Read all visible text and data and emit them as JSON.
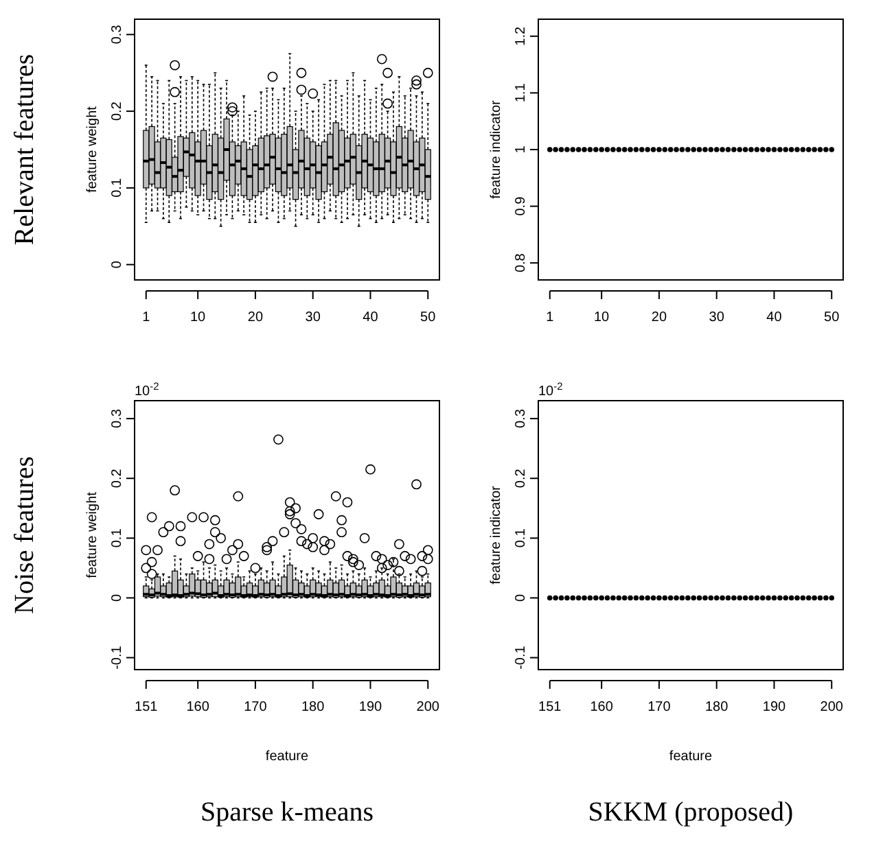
{
  "chart_data": [
    {
      "type": "box",
      "ylabel": "feature weight",
      "categories": [
        "1",
        null,
        null,
        null,
        null,
        null,
        null,
        null,
        null,
        "10",
        null,
        null,
        null,
        null,
        null,
        null,
        null,
        null,
        null,
        "20",
        null,
        null,
        null,
        null,
        null,
        null,
        null,
        null,
        null,
        "30",
        null,
        null,
        null,
        null,
        null,
        null,
        null,
        null,
        null,
        "40",
        null,
        null,
        null,
        null,
        null,
        null,
        null,
        null,
        null,
        "50"
      ],
      "ylim": [
        -0.02,
        0.32
      ],
      "yticks": [
        0,
        0.1,
        0.2,
        0.3
      ],
      "annotations": [
        "Relevant features"
      ],
      "series": [
        {
          "color": "#bebebe",
          "boxes": [
            {
              "low": 0.055,
              "q1": 0.1,
              "median": 0.135,
              "q3": 0.175,
              "high": 0.26
            },
            {
              "low": 0.07,
              "q1": 0.105,
              "median": 0.137,
              "q3": 0.18,
              "high": 0.245
            },
            {
              "low": 0.07,
              "q1": 0.1,
              "median": 0.12,
              "q3": 0.16,
              "high": 0.24
            },
            {
              "low": 0.06,
              "q1": 0.1,
              "median": 0.133,
              "q3": 0.165,
              "high": 0.21
            },
            {
              "low": 0.055,
              "q1": 0.09,
              "median": 0.127,
              "q3": 0.163,
              "high": 0.24
            },
            {
              "low": 0.07,
              "q1": 0.095,
              "median": 0.115,
              "q3": 0.14,
              "high": 0.21,
              "outliers": [
                0.26,
                0.225
              ]
            },
            {
              "low": 0.06,
              "q1": 0.095,
              "median": 0.123,
              "q3": 0.167,
              "high": 0.245
            },
            {
              "low": 0.075,
              "q1": 0.115,
              "median": 0.147,
              "q3": 0.165,
              "high": 0.24
            },
            {
              "low": 0.07,
              "q1": 0.1,
              "median": 0.143,
              "q3": 0.172,
              "high": 0.245
            },
            {
              "low": 0.065,
              "q1": 0.09,
              "median": 0.135,
              "q3": 0.16,
              "high": 0.24
            },
            {
              "low": 0.07,
              "q1": 0.105,
              "median": 0.135,
              "q3": 0.175,
              "high": 0.235
            },
            {
              "low": 0.06,
              "q1": 0.085,
              "median": 0.12,
              "q3": 0.155,
              "high": 0.235
            },
            {
              "low": 0.06,
              "q1": 0.095,
              "median": 0.13,
              "q3": 0.17,
              "high": 0.25
            },
            {
              "low": 0.05,
              "q1": 0.085,
              "median": 0.12,
              "q3": 0.165,
              "high": 0.23
            },
            {
              "low": 0.065,
              "q1": 0.11,
              "median": 0.15,
              "q3": 0.19,
              "high": 0.24
            },
            {
              "low": 0.06,
              "q1": 0.09,
              "median": 0.13,
              "q3": 0.16,
              "high": 0.195,
              "outliers": [
                0.205,
                0.2
              ]
            },
            {
              "low": 0.07,
              "q1": 0.105,
              "median": 0.135,
              "q3": 0.155,
              "high": 0.2
            },
            {
              "low": 0.065,
              "q1": 0.09,
              "median": 0.125,
              "q3": 0.16,
              "high": 0.22
            },
            {
              "low": 0.055,
              "q1": 0.085,
              "median": 0.115,
              "q3": 0.15,
              "high": 0.195
            },
            {
              "low": 0.055,
              "q1": 0.09,
              "median": 0.13,
              "q3": 0.155,
              "high": 0.2
            },
            {
              "low": 0.065,
              "q1": 0.095,
              "median": 0.125,
              "q3": 0.165,
              "high": 0.225
            },
            {
              "low": 0.06,
              "q1": 0.1,
              "median": 0.13,
              "q3": 0.168,
              "high": 0.23
            },
            {
              "low": 0.07,
              "q1": 0.105,
              "median": 0.14,
              "q3": 0.17,
              "high": 0.23,
              "outliers": [
                0.245
              ]
            },
            {
              "low": 0.055,
              "q1": 0.095,
              "median": 0.125,
              "q3": 0.165,
              "high": 0.215
            },
            {
              "low": 0.06,
              "q1": 0.09,
              "median": 0.12,
              "q3": 0.17,
              "high": 0.23
            },
            {
              "low": 0.07,
              "q1": 0.1,
              "median": 0.13,
              "q3": 0.18,
              "high": 0.275
            },
            {
              "low": 0.05,
              "q1": 0.085,
              "median": 0.12,
              "q3": 0.15,
              "high": 0.2
            },
            {
              "low": 0.065,
              "q1": 0.1,
              "median": 0.135,
              "q3": 0.175,
              "high": 0.22,
              "outliers": [
                0.25,
                0.228
              ]
            },
            {
              "low": 0.06,
              "q1": 0.09,
              "median": 0.125,
              "q3": 0.165,
              "high": 0.21
            },
            {
              "low": 0.065,
              "q1": 0.1,
              "median": 0.13,
              "q3": 0.16,
              "high": 0.2,
              "outliers": [
                0.223
              ]
            },
            {
              "low": 0.055,
              "q1": 0.085,
              "median": 0.12,
              "q3": 0.155,
              "high": 0.215
            },
            {
              "low": 0.06,
              "q1": 0.095,
              "median": 0.13,
              "q3": 0.16,
              "high": 0.235
            },
            {
              "low": 0.07,
              "q1": 0.105,
              "median": 0.14,
              "q3": 0.17,
              "high": 0.24
            },
            {
              "low": 0.06,
              "q1": 0.09,
              "median": 0.125,
              "q3": 0.185,
              "high": 0.24
            },
            {
              "low": 0.055,
              "q1": 0.095,
              "median": 0.13,
              "q3": 0.175,
              "high": 0.22
            },
            {
              "low": 0.06,
              "q1": 0.1,
              "median": 0.135,
              "q3": 0.165,
              "high": 0.24
            },
            {
              "low": 0.065,
              "q1": 0.105,
              "median": 0.14,
              "q3": 0.17,
              "high": 0.25
            },
            {
              "low": 0.05,
              "q1": 0.085,
              "median": 0.12,
              "q3": 0.155,
              "high": 0.22
            },
            {
              "low": 0.065,
              "q1": 0.1,
              "median": 0.135,
              "q3": 0.17,
              "high": 0.24
            },
            {
              "low": 0.06,
              "q1": 0.095,
              "median": 0.13,
              "q3": 0.165,
              "high": 0.215
            },
            {
              "low": 0.055,
              "q1": 0.09,
              "median": 0.125,
              "q3": 0.16,
              "high": 0.23
            },
            {
              "low": 0.06,
              "q1": 0.095,
              "median": 0.125,
              "q3": 0.17,
              "high": 0.235,
              "outliers": [
                0.268
              ]
            },
            {
              "low": 0.065,
              "q1": 0.1,
              "median": 0.135,
              "q3": 0.165,
              "high": 0.2,
              "outliers": [
                0.25,
                0.21
              ]
            },
            {
              "low": 0.055,
              "q1": 0.09,
              "median": 0.12,
              "q3": 0.16,
              "high": 0.225
            },
            {
              "low": 0.06,
              "q1": 0.1,
              "median": 0.14,
              "q3": 0.18,
              "high": 0.245
            },
            {
              "low": 0.065,
              "q1": 0.095,
              "median": 0.13,
              "q3": 0.165,
              "high": 0.22
            },
            {
              "low": 0.06,
              "q1": 0.1,
              "median": 0.135,
              "q3": 0.175,
              "high": 0.23
            },
            {
              "low": 0.055,
              "q1": 0.09,
              "median": 0.125,
              "q3": 0.16,
              "high": 0.22,
              "outliers": [
                0.24,
                0.235
              ]
            },
            {
              "low": 0.06,
              "q1": 0.095,
              "median": 0.13,
              "q3": 0.165,
              "high": 0.225
            },
            {
              "low": 0.055,
              "q1": 0.085,
              "median": 0.115,
              "q3": 0.15,
              "high": 0.21,
              "outliers": [
                0.25
              ]
            }
          ]
        }
      ]
    },
    {
      "type": "scatter",
      "ylabel": "feature indicator",
      "marker": "circle",
      "categories": [
        "1",
        null,
        null,
        null,
        null,
        null,
        null,
        null,
        null,
        "10",
        null,
        null,
        null,
        null,
        null,
        null,
        null,
        null,
        null,
        "20",
        null,
        null,
        null,
        null,
        null,
        null,
        null,
        null,
        null,
        "30",
        null,
        null,
        null,
        null,
        null,
        null,
        null,
        null,
        null,
        "40",
        null,
        null,
        null,
        null,
        null,
        null,
        null,
        null,
        null,
        "50"
      ],
      "ylim": [
        0.77,
        1.23
      ],
      "yticks": [
        0.8,
        0.9,
        1.0,
        1.1,
        1.2
      ],
      "series": [
        {
          "color": "#000000",
          "values": [
            1,
            1,
            1,
            1,
            1,
            1,
            1,
            1,
            1,
            1,
            1,
            1,
            1,
            1,
            1,
            1,
            1,
            1,
            1,
            1,
            1,
            1,
            1,
            1,
            1,
            1,
            1,
            1,
            1,
            1,
            1,
            1,
            1,
            1,
            1,
            1,
            1,
            1,
            1,
            1,
            1,
            1,
            1,
            1,
            1,
            1,
            1,
            1,
            1,
            1
          ]
        }
      ]
    },
    {
      "type": "box",
      "ylabel": "feature weight",
      "xlabel": "feature",
      "categories": [
        "151",
        null,
        null,
        null,
        null,
        null,
        null,
        null,
        null,
        "160",
        null,
        null,
        null,
        null,
        null,
        null,
        null,
        null,
        null,
        "170",
        null,
        null,
        null,
        null,
        null,
        null,
        null,
        null,
        null,
        "180",
        null,
        null,
        null,
        null,
        null,
        null,
        null,
        null,
        null,
        "190",
        null,
        null,
        null,
        null,
        null,
        null,
        null,
        null,
        null,
        "200"
      ],
      "ylim": [
        -0.12,
        0.33
      ],
      "yticks": [
        -0.1,
        0,
        0.1,
        0.2,
        0.3
      ],
      "annotations": [
        "10$^{-2}$",
        "Noise features",
        "Sparse k-means"
      ],
      "series": [
        {
          "color": "#bebebe",
          "boxes": [
            {
              "low": 0,
              "q1": 0.002,
              "median": 0.006,
              "q3": 0.02,
              "high": 0.035,
              "outliers": [
                0.08,
                0.05
              ]
            },
            {
              "low": 0,
              "q1": 0.001,
              "median": 0.005,
              "q3": 0.015,
              "high": 0.03,
              "outliers": [
                0.135,
                0.06,
                0.04
              ]
            },
            {
              "low": 0,
              "q1": 0.003,
              "median": 0.008,
              "q3": 0.035,
              "high": 0.04,
              "outliers": [
                0.08
              ]
            },
            {
              "low": 0,
              "q1": 0.002,
              "median": 0.006,
              "q3": 0.02,
              "high": 0.04,
              "outliers": [
                0.11
              ]
            },
            {
              "low": 0,
              "q1": 0.001,
              "median": 0.004,
              "q3": 0.025,
              "high": 0.035,
              "outliers": [
                0.12
              ]
            },
            {
              "low": 0,
              "q1": 0.002,
              "median": 0.005,
              "q3": 0.045,
              "high": 0.07,
              "outliers": [
                0.18
              ]
            },
            {
              "low": 0,
              "q1": 0.001,
              "median": 0.004,
              "q3": 0.03,
              "high": 0.065,
              "outliers": [
                0.12,
                0.095
              ]
            },
            {
              "low": 0,
              "q1": 0.002,
              "median": 0.006,
              "q3": 0.02,
              "high": 0.04
            },
            {
              "low": 0,
              "q1": 0.003,
              "median": 0.008,
              "q3": 0.04,
              "high": 0.05,
              "outliers": [
                0.135
              ]
            },
            {
              "low": 0,
              "q1": 0.002,
              "median": 0.007,
              "q3": 0.03,
              "high": 0.045,
              "outliers": [
                0.07
              ]
            },
            {
              "low": 0,
              "q1": 0.001,
              "median": 0.005,
              "q3": 0.03,
              "high": 0.06,
              "outliers": [
                0.135
              ]
            },
            {
              "low": 0,
              "q1": 0.002,
              "median": 0.006,
              "q3": 0.025,
              "high": 0.05,
              "outliers": [
                0.09,
                0.065
              ]
            },
            {
              "low": 0,
              "q1": 0.002,
              "median": 0.008,
              "q3": 0.03,
              "high": 0.055,
              "outliers": [
                0.13,
                0.11
              ]
            },
            {
              "low": 0,
              "q1": 0.001,
              "median": 0.004,
              "q3": 0.02,
              "high": 0.045,
              "outliers": [
                0.1
              ]
            },
            {
              "low": 0,
              "q1": 0.002,
              "median": 0.006,
              "q3": 0.03,
              "high": 0.05,
              "outliers": [
                0.065
              ]
            },
            {
              "low": 0,
              "q1": 0.001,
              "median": 0.005,
              "q3": 0.025,
              "high": 0.04,
              "outliers": [
                0.08
              ]
            },
            {
              "low": 0,
              "q1": 0.002,
              "median": 0.006,
              "q3": 0.035,
              "high": 0.06,
              "outliers": [
                0.17,
                0.09
              ]
            },
            {
              "low": 0,
              "q1": 0.001,
              "median": 0.004,
              "q3": 0.02,
              "high": 0.035,
              "outliers": [
                0.07
              ]
            },
            {
              "low": 0,
              "q1": 0.002,
              "median": 0.005,
              "q3": 0.025,
              "high": 0.045
            },
            {
              "low": 0,
              "q1": 0.001,
              "median": 0.004,
              "q3": 0.02,
              "high": 0.04,
              "outliers": [
                0.05
              ]
            },
            {
              "low": 0,
              "q1": 0.002,
              "median": 0.006,
              "q3": 0.03,
              "high": 0.05
            },
            {
              "low": 0,
              "q1": 0.001,
              "median": 0.005,
              "q3": 0.025,
              "high": 0.045,
              "outliers": [
                0.085,
                0.08
              ]
            },
            {
              "low": 0,
              "q1": 0.002,
              "median": 0.006,
              "q3": 0.03,
              "high": 0.06,
              "outliers": [
                0.095
              ]
            },
            {
              "low": 0,
              "q1": 0.001,
              "median": 0.004,
              "q3": 0.02,
              "high": 0.04,
              "outliers": [
                0.265
              ]
            },
            {
              "low": 0,
              "q1": 0.002,
              "median": 0.006,
              "q3": 0.035,
              "high": 0.07,
              "outliers": [
                0.11
              ]
            },
            {
              "low": 0,
              "q1": 0.002,
              "median": 0.007,
              "q3": 0.055,
              "high": 0.08,
              "outliers": [
                0.16,
                0.145,
                0.14
              ]
            },
            {
              "low": 0,
              "q1": 0.001,
              "median": 0.005,
              "q3": 0.03,
              "high": 0.05,
              "outliers": [
                0.15,
                0.125
              ]
            },
            {
              "low": 0,
              "q1": 0.002,
              "median": 0.006,
              "q3": 0.025,
              "high": 0.045,
              "outliers": [
                0.115,
                0.095
              ]
            },
            {
              "low": 0,
              "q1": 0.001,
              "median": 0.004,
              "q3": 0.02,
              "high": 0.04,
              "outliers": [
                0.09
              ]
            },
            {
              "low": 0,
              "q1": 0.002,
              "median": 0.006,
              "q3": 0.03,
              "high": 0.05,
              "outliers": [
                0.1,
                0.085
              ]
            },
            {
              "low": 0,
              "q1": 0.002,
              "median": 0.005,
              "q3": 0.025,
              "high": 0.045,
              "outliers": [
                0.14
              ]
            },
            {
              "low": 0,
              "q1": 0.001,
              "median": 0.004,
              "q3": 0.02,
              "high": 0.04,
              "outliers": [
                0.095,
                0.08
              ]
            },
            {
              "low": 0,
              "q1": 0.002,
              "median": 0.006,
              "q3": 0.03,
              "high": 0.06,
              "outliers": [
                0.09
              ]
            },
            {
              "low": 0,
              "q1": 0.001,
              "median": 0.005,
              "q3": 0.025,
              "high": 0.05,
              "outliers": [
                0.17
              ]
            },
            {
              "low": 0,
              "q1": 0.002,
              "median": 0.006,
              "q3": 0.03,
              "high": 0.055,
              "outliers": [
                0.13,
                0.11
              ]
            },
            {
              "low": 0,
              "q1": 0.001,
              "median": 0.004,
              "q3": 0.02,
              "high": 0.04,
              "outliers": [
                0.16,
                0.07
              ]
            },
            {
              "low": 0,
              "q1": 0.002,
              "median": 0.006,
              "q3": 0.025,
              "high": 0.045,
              "outliers": [
                0.065,
                0.06
              ]
            },
            {
              "low": 0,
              "q1": 0.001,
              "median": 0.005,
              "q3": 0.02,
              "high": 0.04,
              "outliers": [
                0.055
              ]
            },
            {
              "low": 0,
              "q1": 0.002,
              "median": 0.006,
              "q3": 0.03,
              "high": 0.05,
              "outliers": [
                0.1
              ]
            },
            {
              "low": 0,
              "q1": 0.001,
              "median": 0.004,
              "q3": 0.02,
              "high": 0.035,
              "outliers": [
                0.215
              ]
            },
            {
              "low": 0,
              "q1": 0.002,
              "median": 0.006,
              "q3": 0.025,
              "high": 0.045,
              "outliers": [
                0.07
              ]
            },
            {
              "low": 0,
              "q1": 0.002,
              "median": 0.005,
              "q3": 0.03,
              "high": 0.05,
              "outliers": [
                0.065,
                0.05
              ]
            },
            {
              "low": 0,
              "q1": 0.001,
              "median": 0.004,
              "q3": 0.02,
              "high": 0.04,
              "outliers": [
                0.055
              ]
            },
            {
              "low": 0,
              "q1": 0.002,
              "median": 0.006,
              "q3": 0.035,
              "high": 0.065,
              "outliers": [
                0.06
              ]
            },
            {
              "low": 0,
              "q1": 0.001,
              "median": 0.005,
              "q3": 0.025,
              "high": 0.04,
              "outliers": [
                0.09,
                0.045
              ]
            },
            {
              "low": 0,
              "q1": 0.002,
              "median": 0.006,
              "q3": 0.02,
              "high": 0.035,
              "outliers": [
                0.07
              ]
            },
            {
              "low": 0,
              "q1": 0.001,
              "median": 0.004,
              "q3": 0.02,
              "high": 0.04,
              "outliers": [
                0.065
              ]
            },
            {
              "low": 0,
              "q1": 0.002,
              "median": 0.006,
              "q3": 0.025,
              "high": 0.045,
              "outliers": [
                0.19
              ]
            },
            {
              "low": 0,
              "q1": 0.001,
              "median": 0.005,
              "q3": 0.02,
              "high": 0.035,
              "outliers": [
                0.07,
                0.045
              ]
            },
            {
              "low": 0,
              "q1": 0.002,
              "median": 0.006,
              "q3": 0.025,
              "high": 0.04,
              "outliers": [
                0.08,
                0.065
              ]
            }
          ]
        }
      ]
    },
    {
      "type": "scatter",
      "ylabel": "feature indicator",
      "xlabel": "feature",
      "marker": "circle",
      "categories": [
        "151",
        null,
        null,
        null,
        null,
        null,
        null,
        null,
        null,
        "160",
        null,
        null,
        null,
        null,
        null,
        null,
        null,
        null,
        null,
        "170",
        null,
        null,
        null,
        null,
        null,
        null,
        null,
        null,
        null,
        "180",
        null,
        null,
        null,
        null,
        null,
        null,
        null,
        null,
        null,
        "190",
        null,
        null,
        null,
        null,
        null,
        null,
        null,
        null,
        null,
        "200"
      ],
      "ylim": [
        -0.12,
        0.33
      ],
      "yticks": [
        -0.1,
        0,
        0.1,
        0.2,
        0.3
      ],
      "annotations": [
        "10$^{-2}$",
        "SKKM (proposed)"
      ],
      "series": [
        {
          "color": "#000000",
          "values": [
            0,
            0,
            0,
            0,
            0,
            0,
            0,
            0,
            0,
            0,
            0,
            0,
            0,
            0,
            0,
            0,
            0,
            0,
            0,
            0,
            0,
            0,
            0,
            0,
            0,
            0,
            0,
            0,
            0,
            0,
            0,
            0,
            0,
            0,
            0,
            0,
            0,
            0,
            0,
            0,
            0,
            0,
            0,
            0,
            0,
            0,
            0,
            0,
            0,
            0
          ]
        }
      ]
    }
  ]
}
